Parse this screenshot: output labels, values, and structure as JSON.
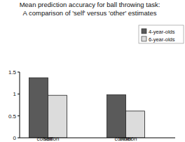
{
  "chart_data": {
    "type": "bar",
    "title": "Mean prediction accuracy for ball throwing task:",
    "subtitle": "A comparison of 'self' versus 'other' estimates",
    "categories": [
      "'self' condition",
      "'other' condition"
    ],
    "series": [
      {
        "name": "4-year-olds",
        "color": "#5a5a5a",
        "values": [
          1.37,
          0.98
        ]
      },
      {
        "name": "6-year-olds",
        "color": "#dcdcdc",
        "values": [
          0.97,
          0.61
        ]
      }
    ],
    "ylim": [
      0,
      1.5
    ],
    "yticks": [
      0,
      0.5,
      1,
      1.5
    ],
    "legend": "upper right"
  }
}
